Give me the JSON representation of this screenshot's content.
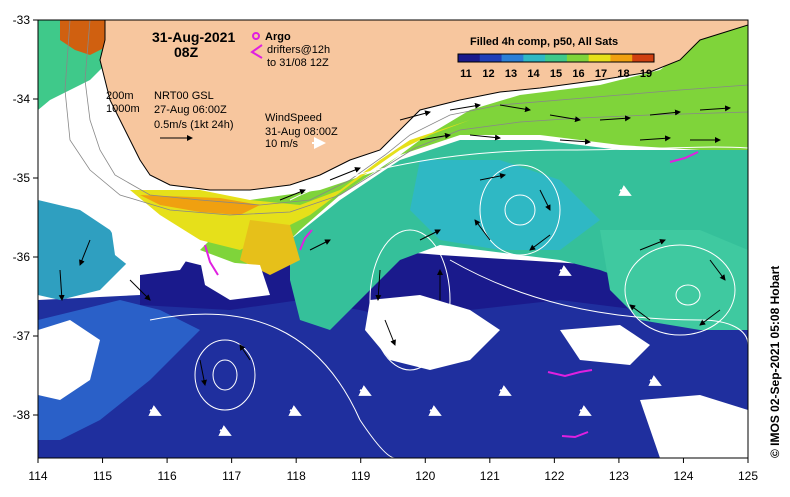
{
  "map": {
    "x_ticks": [
      "114",
      "115",
      "116",
      "117",
      "118",
      "119",
      "120",
      "121",
      "122",
      "123",
      "124",
      "125"
    ],
    "y_ticks": [
      "-33",
      "-34",
      "-35",
      "-36",
      "-37",
      "-38"
    ]
  },
  "title": {
    "date": "31-Aug-2021",
    "hour": "08Z"
  },
  "legend_argo": {
    "argo_label": "Argo",
    "drifters_line1": "drifters@12h",
    "drifters_line2": "to 31/08 12Z"
  },
  "bathy": {
    "contour1": "200m",
    "contour2": "1000m"
  },
  "current_legend": {
    "line1": "NRT00 GSL",
    "line2": "27-Aug 06:00Z",
    "line3": "0.5m/s (1kt 24h)"
  },
  "wind_legend": {
    "line1": "WindSpeed",
    "line2": "31-Aug 08:00Z",
    "line3": "10 m/s"
  },
  "colorbar": {
    "title": "Filled 4h comp, p50, All Sats",
    "labels": [
      "11",
      "12",
      "13",
      "14",
      "15",
      "16",
      "17",
      "18",
      "19"
    ],
    "colors": [
      "#1a1a8c",
      "#1f3fb8",
      "#2b7fd6",
      "#2fb8c4",
      "#3fc98a",
      "#7fd43a",
      "#e6e01a",
      "#f0a010",
      "#d04010"
    ]
  },
  "credit": "© IMOS 02-Sep-2021 05:08 Hobart",
  "colors": {
    "land": "#f7c69e",
    "argo": "#e020e0"
  }
}
